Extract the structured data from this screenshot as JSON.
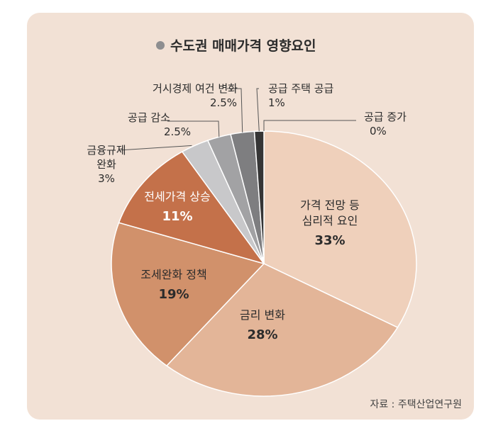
{
  "chart_data": {
    "type": "pie",
    "title": "수도권 매매가격 영향요인",
    "source": "자료 : 주택산업연구원",
    "slices": [
      {
        "label": "가격 전망 등\n심리적 요인",
        "value": 33,
        "display": "33%",
        "color": "#efd0bb",
        "label_pos": "inside"
      },
      {
        "label": "금리 변화",
        "value": 28,
        "display": "28%",
        "color": "#e3b598",
        "label_pos": "inside"
      },
      {
        "label": "조세완화 정책",
        "value": 19,
        "display": "19%",
        "color": "#d1916b",
        "label_pos": "inside"
      },
      {
        "label": "전세가격 상승",
        "value": 11,
        "display": "11%",
        "color": "#c4714a",
        "label_pos": "inside",
        "light_text": true
      },
      {
        "label": "금융규제\n완화",
        "value": 3,
        "display": "3%",
        "color": "#c8c8ca",
        "label_pos": "outside"
      },
      {
        "label": "공급 감소",
        "value": 2.5,
        "display": "2.5%",
        "color": "#a2a2a4",
        "label_pos": "outside"
      },
      {
        "label": "거시경제 여건 변화",
        "value": 2.5,
        "display": "2.5%",
        "color": "#7e7e80",
        "label_pos": "outside"
      },
      {
        "label": "공급 주택 공급",
        "value": 1,
        "display": "1%",
        "color": "#353535",
        "label_pos": "outside"
      },
      {
        "label": "공급 증가",
        "value": 0,
        "display": "0%",
        "color": "#111111",
        "label_pos": "outside"
      }
    ]
  }
}
